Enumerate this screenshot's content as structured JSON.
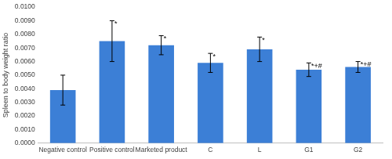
{
  "chart_data": {
    "type": "bar",
    "y_label": "Spleen to body weight ratio",
    "categories": [
      "Negative control",
      "Positive control",
      "Marketed product",
      "C",
      "L",
      "G1",
      "G2"
    ],
    "values": [
      0.0039,
      0.0075,
      0.0072,
      0.0059,
      0.0069,
      0.0054,
      0.0056
    ],
    "errors": [
      0.0011,
      0.0015,
      0.0007,
      0.0007,
      0.0009,
      0.0005,
      0.0004
    ],
    "annotations": [
      null,
      "*",
      "*",
      "*",
      "*",
      "*+#",
      "*+#"
    ],
    "color": "#3c7fd6",
    "ylim": [
      0,
      0.01
    ],
    "yticks": [
      {
        "value": 0,
        "label": "0.0000"
      },
      {
        "value": 0.001,
        "label": "0.0010"
      },
      {
        "value": 0.002,
        "label": "0.0020"
      },
      {
        "value": 0.003,
        "label": "0.0030"
      },
      {
        "value": 0.004,
        "label": "0.0040"
      },
      {
        "value": 0.005,
        "label": "0.0050"
      },
      {
        "value": 0.006,
        "label": "0.0060"
      },
      {
        "value": 0.007,
        "label": "0.0070"
      },
      {
        "value": 0.008,
        "label": "0.0080"
      },
      {
        "value": 0.009,
        "label": "0.0090"
      },
      {
        "value": 0.01,
        "label": "0.0100"
      }
    ],
    "grid": false
  }
}
